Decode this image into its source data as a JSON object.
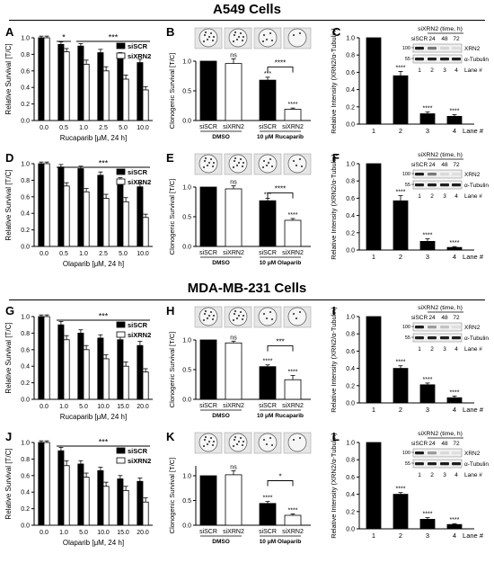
{
  "sections": [
    {
      "title": "A549 Cells"
    },
    {
      "title": "MDA-MB-231 Cells"
    }
  ],
  "colors": {
    "siSCR": "#000000",
    "siXRN2": "#ffffff",
    "blot_dark": "#1e1e1e",
    "blot_light": "#8a8a8a"
  },
  "chart_data": [
    {
      "panel": "A",
      "type": "bar",
      "ylabel": "Relative Survival [T/C]",
      "xlabel": "Rucaparib [μM, 24 h]",
      "categories": [
        "0.0",
        "0.5",
        "1.0",
        "2.5",
        "5.0",
        "10.0"
      ],
      "ylim": [
        0,
        1
      ],
      "yticks": [
        "0.0",
        "0.2",
        "0.4",
        "0.6",
        "0.8",
        "1.0"
      ],
      "legend": [
        "siSCR",
        "siXRN2"
      ],
      "series": [
        {
          "name": "siSCR",
          "values": [
            1.0,
            0.92,
            0.9,
            0.82,
            0.78,
            0.7
          ],
          "err": [
            0.02,
            0.03,
            0.03,
            0.04,
            0.04,
            0.04
          ]
        },
        {
          "name": "siXRN2",
          "values": [
            1.0,
            0.83,
            0.68,
            0.6,
            0.5,
            0.37
          ],
          "err": [
            0.02,
            0.04,
            0.05,
            0.05,
            0.05,
            0.04
          ]
        }
      ],
      "annotations": [
        {
          "text": "*",
          "from": 1,
          "to": 1
        },
        {
          "text": "***",
          "from": 2,
          "to": 5
        }
      ]
    },
    {
      "panel": "B",
      "type": "bar",
      "ylabel": "Clonogenic Survival [T/C]",
      "categories": [
        "siSCR",
        "siXRN2",
        "siSCR",
        "siXRN2"
      ],
      "groups": [
        "DMSO",
        "10 μM Rucaparib"
      ],
      "ylim": [
        0,
        1
      ],
      "yticks": [
        "0.0",
        "0.5",
        "1.0"
      ],
      "values": [
        1.0,
        0.96,
        0.68,
        0.19
      ],
      "err": [
        0,
        0.08,
        0.05,
        0.02
      ],
      "marks": [
        "",
        "ns",
        "***",
        "****"
      ],
      "bracket": "****"
    },
    {
      "panel": "C",
      "type": "bar",
      "ylabel": "Relative Intensity (XRN2/α-Tubulin)",
      "xlabel": "Lane #",
      "categories": [
        "1",
        "2",
        "3",
        "4"
      ],
      "ylim": [
        0,
        1
      ],
      "yticks": [
        "0.0",
        "0.2",
        "0.4",
        "0.6",
        "0.8",
        "1.0"
      ],
      "values": [
        1.0,
        0.56,
        0.12,
        0.09
      ],
      "err": [
        0,
        0.05,
        0.02,
        0.02
      ],
      "marks": [
        "",
        "****",
        "****",
        "****"
      ],
      "blot": {
        "title": "siXRN2 (time, h)",
        "cols": [
          "siSCR",
          "24",
          "48",
          "72"
        ],
        "bands": [
          "XRN2",
          "α-Tubulin"
        ],
        "mw": [
          "100",
          "55"
        ],
        "lanes": [
          "1",
          "2",
          "3",
          "4"
        ],
        "lane_label": "Lane #"
      }
    },
    {
      "panel": "D",
      "type": "bar",
      "ylabel": "Relative Survival [T/C]",
      "xlabel": "Olaparib [μM, 24 h]",
      "categories": [
        "0.0",
        "0.5",
        "1.0",
        "2.5",
        "5.0",
        "10.0"
      ],
      "ylim": [
        0,
        1
      ],
      "yticks": [
        "0.0",
        "0.2",
        "0.4",
        "0.6",
        "0.8",
        "1.0"
      ],
      "legend": [
        "siSCR",
        "siXRN2"
      ],
      "series": [
        {
          "name": "siSCR",
          "values": [
            1.0,
            0.96,
            0.94,
            0.86,
            0.79,
            0.72
          ],
          "err": [
            0.02,
            0.03,
            0.03,
            0.04,
            0.04,
            0.04
          ]
        },
        {
          "name": "siXRN2",
          "values": [
            1.0,
            0.73,
            0.66,
            0.58,
            0.54,
            0.35
          ],
          "err": [
            0.02,
            0.04,
            0.04,
            0.05,
            0.05,
            0.04
          ]
        }
      ],
      "annotations": [
        {
          "text": "***",
          "from": 1,
          "to": 5
        }
      ]
    },
    {
      "panel": "E",
      "type": "bar",
      "ylabel": "Clonogenic Survival [T/C]",
      "categories": [
        "siSCR",
        "siXRN2",
        "siSCR",
        "siXRN2"
      ],
      "groups": [
        "DMSO",
        "10 μM Olaparib"
      ],
      "ylim": [
        0,
        1
      ],
      "yticks": [
        "0.0",
        "0.5",
        "1.0"
      ],
      "values": [
        1.0,
        0.97,
        0.77,
        0.44
      ],
      "err": [
        0,
        0.05,
        0.04,
        0.03
      ],
      "marks": [
        "",
        "ns",
        "***",
        "****"
      ],
      "bracket": "****"
    },
    {
      "panel": "F",
      "type": "bar",
      "ylabel": "Relative Intensity (XRN2/α-Tubulin)",
      "xlabel": "Lane #",
      "categories": [
        "1",
        "2",
        "3",
        "4"
      ],
      "ylim": [
        0,
        1
      ],
      "yticks": [
        "0.0",
        "0.2",
        "0.4",
        "0.6",
        "0.8",
        "1.0"
      ],
      "values": [
        1.0,
        0.57,
        0.1,
        0.03
      ],
      "err": [
        0,
        0.06,
        0.03,
        0.01
      ],
      "marks": [
        "",
        "****",
        "****",
        "****"
      ],
      "blot": {
        "title": "siXRN2 (time, h)",
        "cols": [
          "siSCR",
          "24",
          "48",
          "72"
        ],
        "bands": [
          "XRN2",
          "α-Tubulin"
        ],
        "mw": [
          "100",
          "55"
        ],
        "lanes": [
          "1",
          "2",
          "3",
          "4"
        ],
        "lane_label": "Lane #"
      }
    },
    {
      "panel": "G",
      "type": "bar",
      "ylabel": "Relative Survival [T/C]",
      "xlabel": "Rucaparib [μM, 24 h]",
      "categories": [
        "0.0",
        "1.0",
        "5.0",
        "10.0",
        "15.0",
        "20.0"
      ],
      "ylim": [
        0,
        1
      ],
      "yticks": [
        "0.0",
        "0.2",
        "0.4",
        "0.6",
        "0.8",
        "1.0"
      ],
      "legend": [
        "siSCR",
        "siXRN2"
      ],
      "series": [
        {
          "name": "siSCR",
          "values": [
            1.0,
            0.9,
            0.8,
            0.74,
            0.72,
            0.65
          ],
          "err": [
            0.02,
            0.04,
            0.04,
            0.04,
            0.05,
            0.05
          ]
        },
        {
          "name": "siXRN2",
          "values": [
            1.0,
            0.72,
            0.6,
            0.49,
            0.4,
            0.33
          ],
          "err": [
            0.02,
            0.05,
            0.05,
            0.05,
            0.05,
            0.04
          ]
        }
      ],
      "annotations": [
        {
          "text": "***",
          "from": 1,
          "to": 5
        }
      ]
    },
    {
      "panel": "H",
      "type": "bar",
      "ylabel": "Clonogenic Survival [T/C]",
      "categories": [
        "siSCR",
        "siXRN2",
        "siSCR",
        "siXRN2"
      ],
      "groups": [
        "DMSO",
        "10 μM Rucaparib"
      ],
      "ylim": [
        0,
        1
      ],
      "yticks": [
        "0.0",
        "0.5",
        "1.0"
      ],
      "values": [
        1.0,
        0.95,
        0.55,
        0.33
      ],
      "err": [
        0,
        0.03,
        0.03,
        0.07
      ],
      "marks": [
        "",
        "ns",
        "****",
        "****"
      ],
      "bracket": "***"
    },
    {
      "panel": "I",
      "type": "bar",
      "ylabel": "Relative Intensity (XRN2/α-Tubulin)",
      "xlabel": "Lane #",
      "categories": [
        "1",
        "2",
        "3",
        "4"
      ],
      "ylim": [
        0,
        1
      ],
      "yticks": [
        "0.0",
        "0.2",
        "0.4",
        "0.6",
        "0.8",
        "1.0"
      ],
      "values": [
        1.0,
        0.4,
        0.21,
        0.06
      ],
      "err": [
        0,
        0.03,
        0.02,
        0.02
      ],
      "marks": [
        "",
        "****",
        "****",
        "****"
      ],
      "blot": {
        "title": "siXRN2 (time, h)",
        "cols": [
          "siSCR",
          "24",
          "48",
          "72"
        ],
        "bands": [
          "XRN2",
          "α-Tubulin"
        ],
        "mw": [
          "100",
          "55"
        ],
        "lanes": [
          "1",
          "2",
          "3",
          "4"
        ],
        "lane_label": "Lane #"
      }
    },
    {
      "panel": "J",
      "type": "bar",
      "ylabel": "Relative Survival [T/C]",
      "xlabel": "Olaparib [μM, 24 h]",
      "categories": [
        "0.0",
        "1.0",
        "5.0",
        "10.0",
        "15.0",
        "20.0"
      ],
      "ylim": [
        0,
        1
      ],
      "yticks": [
        "0.0",
        "0.2",
        "0.4",
        "0.6",
        "0.8",
        "1.0"
      ],
      "legend": [
        "siSCR",
        "siXRN2"
      ],
      "series": [
        {
          "name": "siSCR",
          "values": [
            1.0,
            0.9,
            0.74,
            0.66,
            0.56,
            0.53
          ],
          "err": [
            0.02,
            0.04,
            0.04,
            0.04,
            0.04,
            0.04
          ]
        },
        {
          "name": "siXRN2",
          "values": [
            1.0,
            0.72,
            0.58,
            0.47,
            0.42,
            0.28
          ],
          "err": [
            0.02,
            0.06,
            0.05,
            0.05,
            0.05,
            0.05
          ]
        }
      ],
      "annotations": [
        {
          "text": "***",
          "from": 1,
          "to": 5
        }
      ]
    },
    {
      "panel": "K",
      "type": "bar",
      "ylabel": "Clonogenic Survival [T/C]",
      "categories": [
        "siSCR",
        "siXRN2",
        "siSCR",
        "siXRN2"
      ],
      "groups": [
        "DMSO",
        "10 μM Olaparib"
      ],
      "ylim": [
        0,
        1.2
      ],
      "yticks": [
        "0.0",
        "0.5",
        "1.0"
      ],
      "values": [
        1.0,
        1.02,
        0.44,
        0.2
      ],
      "err": [
        0,
        0.08,
        0.04,
        0.03
      ],
      "marks": [
        "",
        "ns",
        "****",
        "****"
      ],
      "bracket": "*"
    },
    {
      "panel": "L",
      "type": "bar",
      "ylabel": "Relative Intensity (XRN2/α-Tubulin)",
      "xlabel": "Lane #",
      "categories": [
        "1",
        "2",
        "3",
        "4"
      ],
      "ylim": [
        0,
        1
      ],
      "yticks": [
        "0.0",
        "0.2",
        "0.4",
        "0.6",
        "0.8",
        "1.0"
      ],
      "values": [
        1.0,
        0.4,
        0.11,
        0.05
      ],
      "err": [
        0,
        0.02,
        0.02,
        0.01
      ],
      "marks": [
        "",
        "****",
        "****",
        "****"
      ],
      "blot": {
        "title": "siXRN2 (time, h)",
        "cols": [
          "siSCR",
          "24",
          "48",
          "72"
        ],
        "bands": [
          "XRN2",
          "α-Tubulin"
        ],
        "mw": [
          "100",
          "55"
        ],
        "lanes": [
          "1",
          "2",
          "3",
          "4"
        ],
        "lane_label": "Lane #"
      }
    }
  ]
}
